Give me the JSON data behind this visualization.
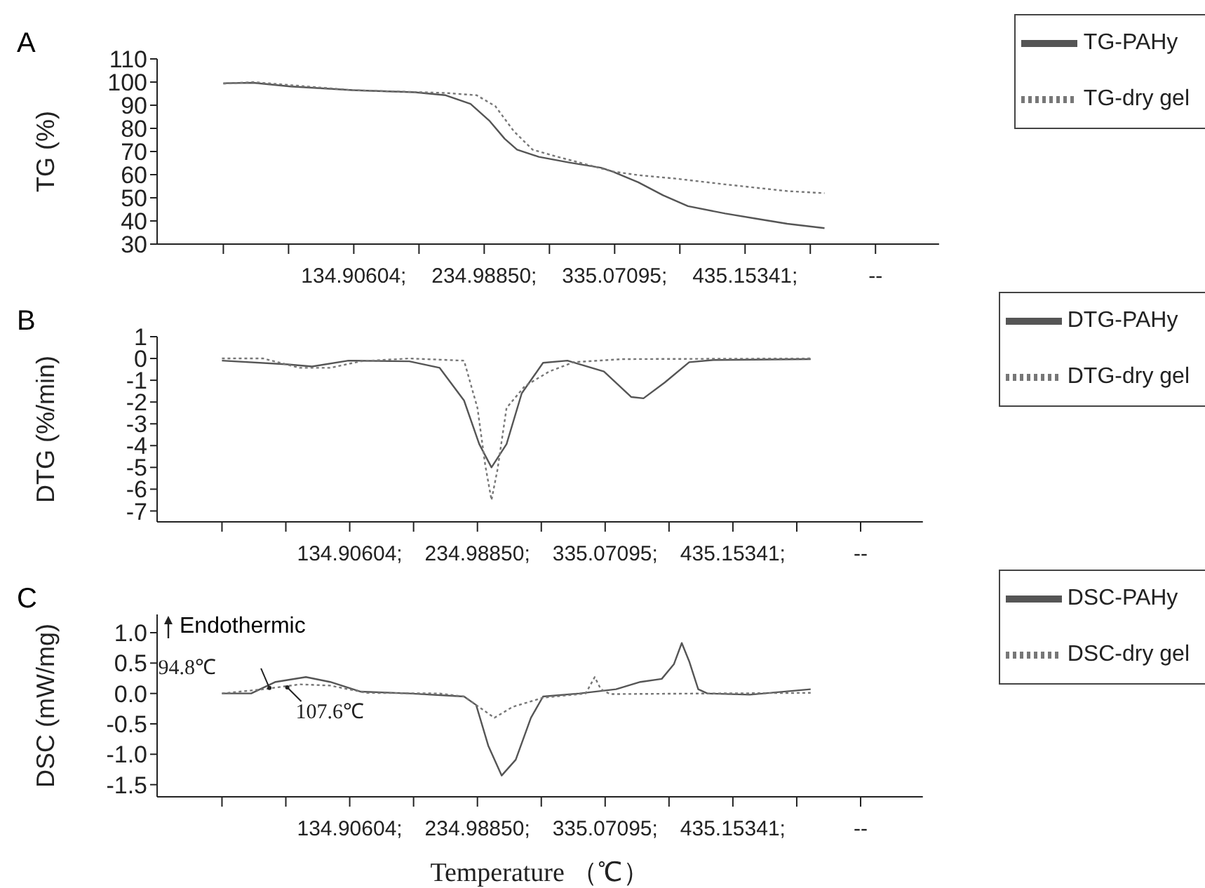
{
  "chart_data": [
    {
      "type": "line",
      "title": "A",
      "ylabel": "TG (%)",
      "legend": "top right",
      "marker": "none",
      "xlim": [
        -16,
        584
      ],
      "xticks": [
        {
          "value": 34.82,
          "label": null
        },
        {
          "value": 84.86,
          "label": null
        },
        {
          "value": 134.90604,
          "label": "134.90604;"
        },
        {
          "value": 184.95,
          "label": null
        },
        {
          "value": 234.9885,
          "label": "234.98850;"
        },
        {
          "value": 285.03,
          "label": null
        },
        {
          "value": 335.07095,
          "label": "335.07095;"
        },
        {
          "value": 385.11,
          "label": null
        },
        {
          "value": 435.15341,
          "label": "435.15341;"
        },
        {
          "value": 485.2,
          "label": null
        },
        {
          "value": 535.23,
          "label": "--"
        }
      ],
      "ylim": [
        30,
        110
      ],
      "yticks": [
        30,
        40,
        50,
        60,
        70,
        80,
        90,
        100,
        110
      ],
      "series": [
        {
          "name": "TG-PAHy",
          "color": "#555555",
          "line_style": "solid",
          "x": [
            34.8,
            57.7,
            86.3,
            133.9,
            181.6,
            205.4,
            224.5,
            238.8,
            250.7,
            260.2,
            276.9,
            300.7,
            324.6,
            333.2,
            353.2,
            372.2,
            391.3,
            419.9,
            443.7,
            467.5,
            496.1
          ],
          "values": [
            99.5,
            99.7,
            98.1,
            96.5,
            95.6,
            94.3,
            90.6,
            83.4,
            75.5,
            70.8,
            67.7,
            65.2,
            63,
            61.4,
            56.7,
            51.1,
            46.4,
            43.2,
            41,
            38.8,
            36.9
          ]
        },
        {
          "name": "TG-dry gel",
          "color": "#777777",
          "line_style": "dotted",
          "x": [
            34.8,
            57.7,
            133.9,
            205.4,
            229.2,
            243.5,
            257.8,
            272.1,
            291.2,
            315.0,
            333.2,
            353.2,
            381.8,
            419.9,
            467.5,
            496.1
          ],
          "values": [
            99.3,
            100,
            96.5,
            95.3,
            94.3,
            89.6,
            78.7,
            70.8,
            67.7,
            64.2,
            61.4,
            59.8,
            58.3,
            55.8,
            52.9,
            52
          ]
        }
      ]
    },
    {
      "type": "line",
      "title": "B",
      "ylabel": "DTG (%/min)",
      "legend": "top right",
      "marker": "none",
      "xlim": [
        -16,
        584
      ],
      "xticks": [
        {
          "value": 34.82,
          "label": null
        },
        {
          "value": 84.86,
          "label": null
        },
        {
          "value": 134.90604,
          "label": "134.90604;"
        },
        {
          "value": 184.95,
          "label": null
        },
        {
          "value": 234.9885,
          "label": "234.98850;"
        },
        {
          "value": 285.03,
          "label": null
        },
        {
          "value": 335.07095,
          "label": "335.07095;"
        },
        {
          "value": 385.11,
          "label": null
        },
        {
          "value": 435.15341,
          "label": "435.15341;"
        },
        {
          "value": 485.2,
          "label": null
        },
        {
          "value": 535.23,
          "label": "--"
        }
      ],
      "ylim": [
        -7.5,
        1
      ],
      "yticks": [
        1,
        0,
        -1,
        -2,
        -3,
        -4,
        -5,
        -6,
        -7
      ],
      "series": [
        {
          "name": "DTG-PAHy",
          "color": "#555555",
          "line_style": "solid",
          "x": [
            34.8,
            86.3,
            105.4,
            133.9,
            181.6,
            205.4,
            224.5,
            236.4,
            246,
            257.8,
            269.7,
            286.4,
            305.5,
            334.1,
            355.6,
            365.1,
            381.8,
            400.9,
            419.9,
            496.1
          ],
          "values": [
            -0.1,
            -0.27,
            -0.37,
            -0.1,
            -0.13,
            -0.43,
            -1.93,
            -3.93,
            -5.0,
            -3.93,
            -1.6,
            -0.2,
            -0.1,
            -0.6,
            -1.77,
            -1.83,
            -1.1,
            -0.17,
            -0.07,
            -0.03
          ]
        },
        {
          "name": "DTG-dry gel",
          "color": "#777777",
          "line_style": "dotted",
          "x": [
            34.8,
            67.2,
            95.8,
            119.6,
            143.5,
            181.6,
            224.5,
            235.0,
            241.2,
            246,
            250.7,
            257.8,
            272.1,
            291.2,
            310.3,
            348.4,
            496.1
          ],
          "values": [
            0,
            0,
            -0.43,
            -0.43,
            -0.13,
            0,
            -0.1,
            -2.27,
            -4.93,
            -6.5,
            -5.1,
            -2.27,
            -1.27,
            -0.6,
            -0.17,
            -0.03,
            0
          ]
        }
      ]
    },
    {
      "type": "line",
      "title": "C",
      "ylabel": "DSC (mW/mg)",
      "xlabel": "Temperature （℃）",
      "legend": "top right",
      "marker": "none",
      "xlim": [
        -16,
        584
      ],
      "xticks": [
        {
          "value": 34.82,
          "label": null
        },
        {
          "value": 84.86,
          "label": null
        },
        {
          "value": 134.90604,
          "label": "134.90604;"
        },
        {
          "value": 184.95,
          "label": null
        },
        {
          "value": 234.9885,
          "label": "234.98850;"
        },
        {
          "value": 285.03,
          "label": null
        },
        {
          "value": 335.07095,
          "label": "335.07095;"
        },
        {
          "value": 385.11,
          "label": null
        },
        {
          "value": 435.15341,
          "label": "435.15341;"
        },
        {
          "value": 485.2,
          "label": null
        },
        {
          "value": 535.23,
          "label": "--"
        }
      ],
      "ylim": [
        -1.7,
        1.3
      ],
      "yticks": [
        {
          "value": 1,
          "label": "1.0"
        },
        {
          "value": 0.5,
          "label": "0.5"
        },
        {
          "value": 0,
          "label": "0.0"
        },
        {
          "value": -0.5,
          "label": "-0.5"
        },
        {
          "value": -1,
          "label": "-1.0"
        },
        {
          "value": -1.5,
          "label": "-1.5"
        }
      ],
      "annotations": [
        "Endothermic",
        {
          "text": "94.8℃",
          "x": 72,
          "y": 0.09
        },
        {
          "text": "107.6℃",
          "x": 86,
          "y": 0.1
        }
      ],
      "series": [
        {
          "name": "DSC-PAHy",
          "color": "#555555",
          "line_style": "solid",
          "x": [
            34.8,
            57.7,
            76.8,
            100.6,
            119.6,
            143.5,
            181.6,
            224.5,
            234.0,
            243.5,
            254.0,
            265.0,
            276.9,
            286.4,
            315.0,
            343.6,
            362.7,
            379.4,
            388.9,
            395.1,
            400.9,
            408.0,
            415.2,
            448.5,
            496.1
          ],
          "values": [
            0,
            0,
            0.19,
            0.27,
            0.19,
            0.03,
            0,
            -0.05,
            -0.19,
            -0.86,
            -1.35,
            -1.09,
            -0.4,
            -0.05,
            0,
            0.07,
            0.19,
            0.24,
            0.48,
            0.83,
            0.53,
            0.07,
            0,
            -0.02,
            0.07
          ]
        },
        {
          "name": "DSC-dry gel",
          "color": "#777777",
          "line_style": "dotted",
          "x": [
            34.8,
            67.2,
            95.8,
            119.6,
            148.2,
            205.4,
            224.5,
            248.3,
            262.6,
            286.4,
            319.8,
            326.9,
            331.7,
            338.9,
            496.1
          ],
          "values": [
            0,
            0.07,
            0.15,
            0.13,
            0.01,
            0,
            -0.05,
            -0.4,
            -0.22,
            -0.07,
            0,
            0.27,
            0.07,
            -0.01,
            0.01
          ]
        }
      ]
    }
  ]
}
